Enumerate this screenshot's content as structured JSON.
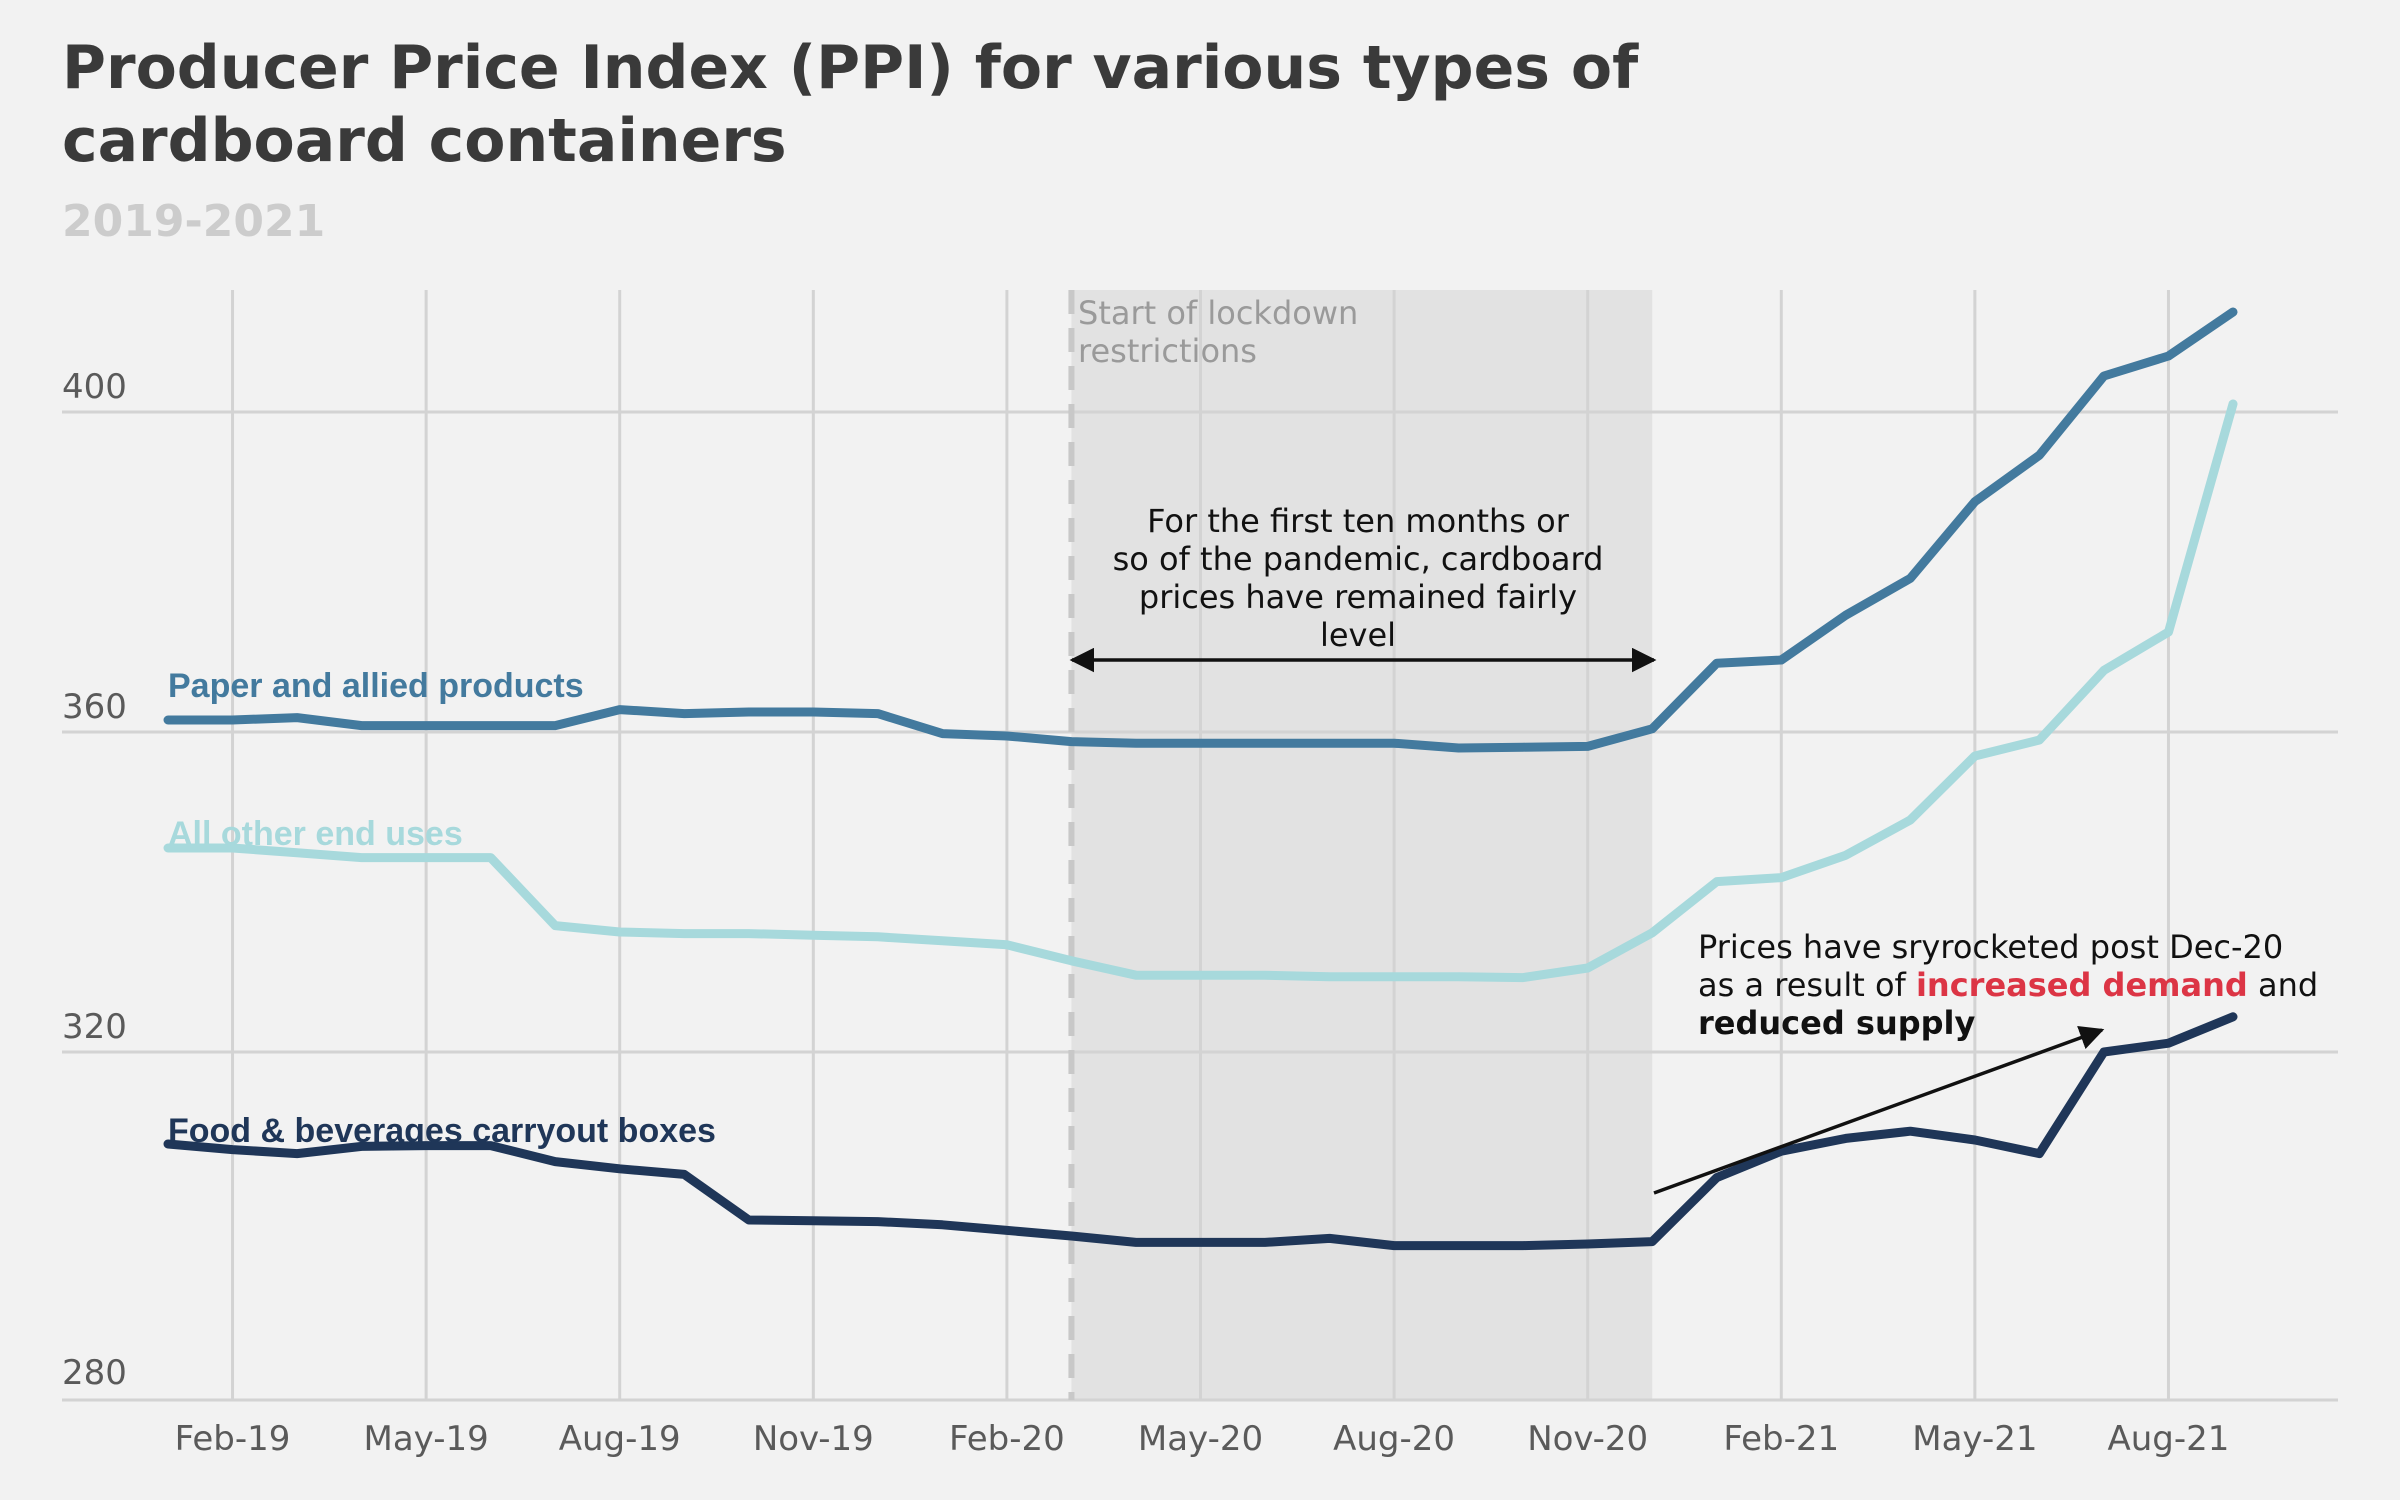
{
  "chart_data": {
    "type": "line",
    "title_lines": [
      "Producer Price Index (PPI) for various types of",
      "cardboard containers"
    ],
    "subtitle": "2019-2021",
    "xlabel": "",
    "ylabel": "",
    "ylim": [
      280,
      415
    ],
    "yticks": [
      280,
      320,
      360,
      400
    ],
    "x_range": [
      "2019-01",
      "2021-11"
    ],
    "x": [
      "2019-01",
      "2019-02",
      "2019-03",
      "2019-04",
      "2019-05",
      "2019-06",
      "2019-07",
      "2019-08",
      "2019-09",
      "2019-10",
      "2019-11",
      "2019-12",
      "2020-01",
      "2020-02",
      "2020-03",
      "2020-04",
      "2020-05",
      "2020-06",
      "2020-07",
      "2020-08",
      "2020-09",
      "2020-10",
      "2020-11",
      "2020-12",
      "2021-01",
      "2021-02",
      "2021-03",
      "2021-04",
      "2021-05",
      "2021-06",
      "2021-07",
      "2021-08",
      "2021-09"
    ],
    "xticks": [
      {
        "date": "2019-02",
        "label": "Feb-19"
      },
      {
        "date": "2019-05",
        "label": "May-19"
      },
      {
        "date": "2019-08",
        "label": "Aug-19"
      },
      {
        "date": "2019-11",
        "label": "Nov-19"
      },
      {
        "date": "2020-02",
        "label": "Feb-20"
      },
      {
        "date": "2020-05",
        "label": "May-20"
      },
      {
        "date": "2020-08",
        "label": "Aug-20"
      },
      {
        "date": "2020-11",
        "label": "Nov-20"
      },
      {
        "date": "2021-02",
        "label": "Feb-21"
      },
      {
        "date": "2021-05",
        "label": "May-21"
      },
      {
        "date": "2021-08",
        "label": "Aug-21"
      }
    ],
    "grid": true,
    "series": [
      {
        "name": "Paper and allied products",
        "color": "#437a9e",
        "values": [
          361.5,
          361.5,
          361.8,
          360.8,
          360.8,
          360.8,
          360.8,
          362.8,
          362.3,
          362.5,
          362.5,
          362.3,
          359.8,
          359.5,
          358.8,
          358.6,
          358.6,
          358.6,
          358.6,
          358.6,
          358.0,
          358.1,
          358.2,
          360.4,
          368.6,
          369.0,
          374.6,
          379.2,
          388.8,
          394.6,
          404.5,
          407.0,
          412.5
        ]
      },
      {
        "name": "All other end uses",
        "color": "#a7d9dc",
        "values": [
          345.5,
          345.5,
          344.9,
          344.3,
          344.3,
          344.3,
          335.8,
          335.0,
          334.8,
          334.8,
          334.6,
          334.4,
          333.9,
          333.4,
          331.4,
          329.6,
          329.6,
          329.6,
          329.4,
          329.4,
          329.4,
          329.3,
          330.5,
          334.9,
          341.3,
          341.8,
          344.6,
          349.0,
          357.0,
          359.0,
          367.7,
          372.5,
          401.0
        ]
      },
      {
        "name": "Food & beverages carryout boxes",
        "color": "#1f3658",
        "values": [
          308.5,
          307.8,
          307.3,
          308.2,
          308.3,
          308.3,
          306.3,
          305.4,
          304.7,
          299.0,
          298.9,
          298.8,
          298.4,
          297.7,
          297.0,
          296.2,
          296.2,
          296.2,
          296.7,
          295.8,
          295.8,
          295.8,
          296.0,
          296.3,
          304.3,
          307.6,
          309.2,
          310.1,
          309.0,
          307.3,
          320.0,
          321.1,
          324.4
        ]
      }
    ],
    "annotations": {
      "lockdown_label_lines": [
        "Start of lockdown",
        "restrictions"
      ],
      "lockdown_start": "2020-03",
      "shade_end": "2020-12",
      "level_note_lines": [
        "For the first ten months or",
        "so of the pandemic, cardboard",
        "prices have remained fairly",
        "level"
      ],
      "surge_note_line1": "Prices have sryrocketed post Dec-20",
      "surge_note_line2_pre": "as a result of ",
      "surge_note_demand": "increased demand",
      "surge_note_line2_post": " and",
      "surge_note_supply": "reduced supply",
      "highlight_color": "#dc3545"
    },
    "colors": {
      "background": "#f2f2f2",
      "grid": "#d3d3d3",
      "shade": "#e2e2e2",
      "title": "#3a3a3a",
      "subtitle": "#cccccc"
    }
  }
}
